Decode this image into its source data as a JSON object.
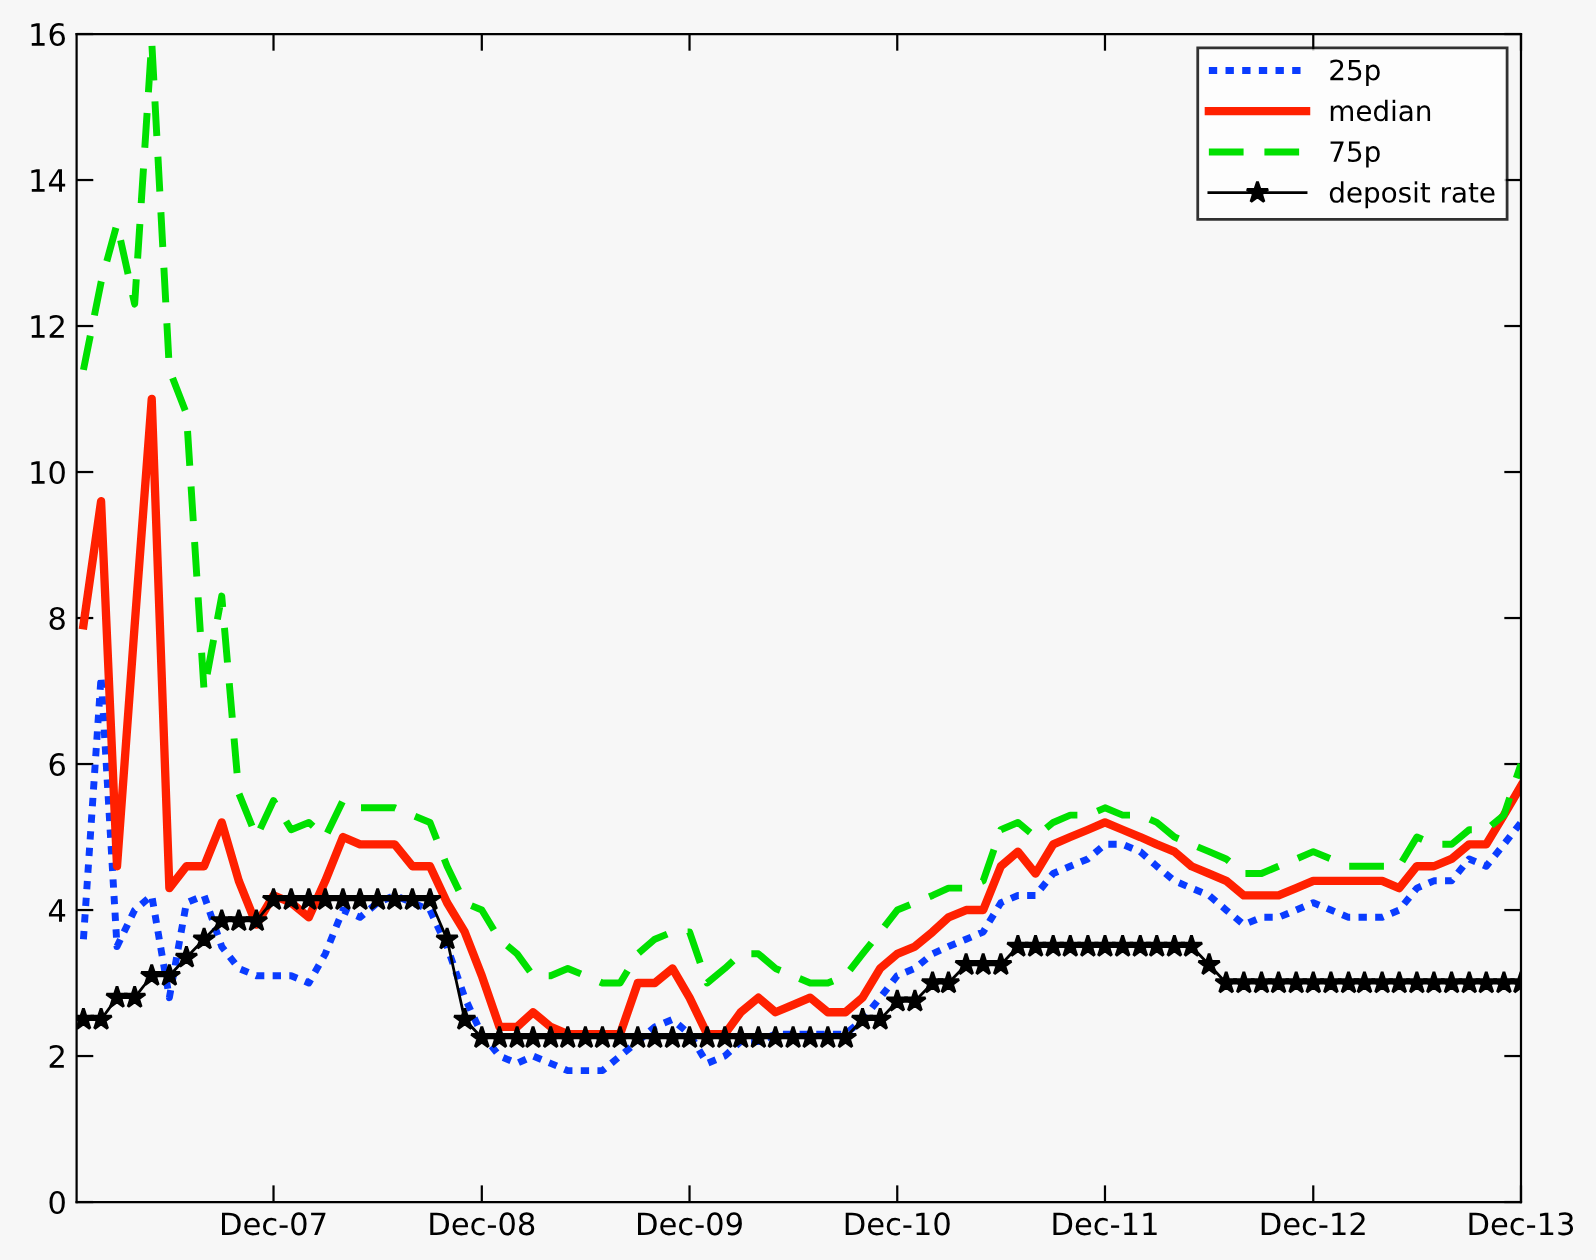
{
  "chart_data": {
    "type": "line",
    "x": [
      "2007-01",
      "2007-02",
      "2007-03",
      "2007-04",
      "2007-05",
      "2007-06",
      "2007-07",
      "2007-08",
      "2007-09",
      "2007-10",
      "2007-11",
      "2007-12",
      "2008-01",
      "2008-02",
      "2008-03",
      "2008-04",
      "2008-05",
      "2008-06",
      "2008-07",
      "2008-08",
      "2008-09",
      "2008-10",
      "2008-11",
      "2008-12",
      "2009-01",
      "2009-02",
      "2009-03",
      "2009-04",
      "2009-05",
      "2009-06",
      "2009-07",
      "2009-08",
      "2009-09",
      "2009-10",
      "2009-11",
      "2009-12",
      "2010-01",
      "2010-02",
      "2010-03",
      "2010-04",
      "2010-05",
      "2010-06",
      "2010-07",
      "2010-08",
      "2010-09",
      "2010-10",
      "2010-11",
      "2010-12",
      "2011-01",
      "2011-02",
      "2011-03",
      "2011-04",
      "2011-05",
      "2011-06",
      "2011-07",
      "2011-08",
      "2011-09",
      "2011-10",
      "2011-11",
      "2011-12",
      "2012-01",
      "2012-02",
      "2012-03",
      "2012-04",
      "2012-05",
      "2012-06",
      "2012-07",
      "2012-08",
      "2012-09",
      "2012-10",
      "2012-11",
      "2012-12",
      "2013-01",
      "2013-02",
      "2013-03",
      "2013-04",
      "2013-05",
      "2013-06",
      "2013-07",
      "2013-08",
      "2013-09",
      "2013-10",
      "2013-11",
      "2013-12"
    ],
    "series": [
      {
        "name": "25p",
        "color": "#0a3cff",
        "line_style": "dotted",
        "marker": "none",
        "values": [
          3.6,
          7.2,
          3.5,
          4.0,
          4.2,
          2.8,
          4.1,
          4.2,
          3.5,
          3.2,
          3.1,
          3.1,
          3.1,
          3.0,
          3.4,
          4.0,
          3.9,
          4.1,
          4.2,
          4.1,
          4.0,
          3.5,
          2.8,
          2.3,
          2.0,
          1.9,
          2.0,
          1.9,
          1.8,
          1.8,
          1.8,
          2.0,
          2.2,
          2.4,
          2.5,
          2.3,
          1.9,
          2.0,
          2.2,
          2.2,
          2.3,
          2.3,
          2.3,
          2.3,
          2.3,
          2.5,
          2.8,
          3.1,
          3.2,
          3.4,
          3.5,
          3.6,
          3.7,
          4.1,
          4.2,
          4.2,
          4.5,
          4.6,
          4.7,
          4.9,
          4.9,
          4.8,
          4.6,
          4.4,
          4.3,
          4.2,
          4.0,
          3.8,
          3.9,
          3.9,
          4.0,
          4.1,
          4.0,
          3.9,
          3.9,
          3.9,
          4.0,
          4.3,
          4.4,
          4.4,
          4.7,
          4.6,
          4.9,
          5.2
        ]
      },
      {
        "name": "median",
        "color": "#ff2000",
        "line_style": "solid",
        "marker": "none",
        "values": [
          7.9,
          9.6,
          4.6,
          7.9,
          11.0,
          4.3,
          4.6,
          4.6,
          5.2,
          4.4,
          3.8,
          4.2,
          4.1,
          3.9,
          4.4,
          5.0,
          4.9,
          4.9,
          4.9,
          4.6,
          4.6,
          4.1,
          3.7,
          3.1,
          2.4,
          2.4,
          2.6,
          2.4,
          2.3,
          2.3,
          2.3,
          2.3,
          3.0,
          3.0,
          3.2,
          2.8,
          2.3,
          2.3,
          2.6,
          2.8,
          2.6,
          2.7,
          2.8,
          2.6,
          2.6,
          2.8,
          3.2,
          3.4,
          3.5,
          3.7,
          3.9,
          4.0,
          4.0,
          4.6,
          4.8,
          4.5,
          4.9,
          5.0,
          5.1,
          5.2,
          5.1,
          5.0,
          4.9,
          4.8,
          4.6,
          4.5,
          4.4,
          4.2,
          4.2,
          4.2,
          4.3,
          4.4,
          4.4,
          4.4,
          4.4,
          4.4,
          4.3,
          4.6,
          4.6,
          4.7,
          4.9,
          4.9,
          5.3,
          5.7
        ]
      },
      {
        "name": "75p",
        "color": "#00e000",
        "line_style": "dashed",
        "marker": "none",
        "values": [
          11.4,
          12.6,
          13.4,
          12.3,
          15.9,
          11.4,
          10.8,
          7.0,
          8.3,
          5.6,
          5.0,
          5.5,
          5.1,
          5.2,
          5.0,
          5.5,
          5.4,
          5.4,
          5.4,
          5.3,
          5.2,
          4.6,
          4.1,
          4.0,
          3.6,
          3.4,
          3.1,
          3.1,
          3.2,
          3.1,
          3.0,
          3.0,
          3.4,
          3.6,
          3.7,
          3.7,
          3.0,
          3.2,
          3.4,
          3.4,
          3.2,
          3.1,
          3.0,
          3.0,
          3.1,
          3.4,
          3.7,
          4.0,
          4.1,
          4.2,
          4.3,
          4.3,
          4.4,
          5.1,
          5.2,
          5.0,
          5.2,
          5.3,
          5.3,
          5.4,
          5.3,
          5.3,
          5.2,
          5.0,
          4.9,
          4.8,
          4.7,
          4.5,
          4.5,
          4.6,
          4.7,
          4.8,
          4.7,
          4.6,
          4.6,
          4.6,
          4.6,
          5.0,
          4.9,
          4.9,
          5.1,
          5.1,
          5.3,
          6.0
        ]
      },
      {
        "name": "deposit rate",
        "color": "#000000",
        "line_style": "solid",
        "marker": "star",
        "values": [
          2.5,
          2.5,
          2.8,
          2.8,
          3.1,
          3.1,
          3.35,
          3.6,
          3.85,
          3.85,
          3.85,
          4.14,
          4.14,
          4.14,
          4.14,
          4.14,
          4.14,
          4.14,
          4.14,
          4.14,
          4.14,
          3.6,
          2.5,
          2.25,
          2.25,
          2.25,
          2.25,
          2.25,
          2.25,
          2.25,
          2.25,
          2.25,
          2.25,
          2.25,
          2.25,
          2.25,
          2.25,
          2.25,
          2.25,
          2.25,
          2.25,
          2.25,
          2.25,
          2.25,
          2.25,
          2.5,
          2.5,
          2.75,
          2.75,
          3.0,
          3.0,
          3.25,
          3.25,
          3.25,
          3.5,
          3.5,
          3.5,
          3.5,
          3.5,
          3.5,
          3.5,
          3.5,
          3.5,
          3.5,
          3.5,
          3.25,
          3.0,
          3.0,
          3.0,
          3.0,
          3.0,
          3.0,
          3.0,
          3.0,
          3.0,
          3.0,
          3.0,
          3.0,
          3.0,
          3.0,
          3.0,
          3.0,
          3.0,
          3.0
        ]
      }
    ],
    "xlim": [
      "2006-12-20",
      "2013-12-01"
    ],
    "xticks": [
      {
        "value": "2007-12-01",
        "label": "Dec-07"
      },
      {
        "value": "2008-12-01",
        "label": "Dec-08"
      },
      {
        "value": "2009-12-01",
        "label": "Dec-09"
      },
      {
        "value": "2010-12-01",
        "label": "Dec-10"
      },
      {
        "value": "2011-12-01",
        "label": "Dec-11"
      },
      {
        "value": "2012-12-01",
        "label": "Dec-12"
      },
      {
        "value": "2013-12-01",
        "label": "Dec-13"
      }
    ],
    "ylim": [
      0,
      16
    ],
    "yticks": [
      0,
      2,
      4,
      6,
      8,
      10,
      12,
      14,
      16
    ],
    "grid": false,
    "legend": "top right"
  }
}
